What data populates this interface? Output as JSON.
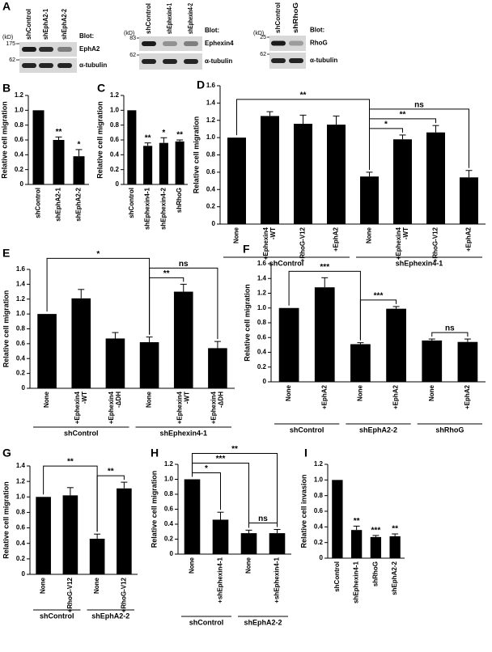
{
  "blot_panel": {
    "panel": "A",
    "blots": [
      {
        "unit": "(kD)",
        "lanes": [
          "shControl",
          "shEphA2-1",
          "shEphA2-2"
        ],
        "rows": [
          {
            "marker": 175,
            "blot_label": "Blot:",
            "antibody": "EphA2"
          },
          {
            "marker": 62,
            "antibody": "α-tubulin"
          }
        ]
      },
      {
        "unit": "(kD)",
        "lanes": [
          "shControl",
          "shEphexin4-1",
          "shEphexin4-2"
        ],
        "rows": [
          {
            "marker": 83,
            "blot_label": "Blot:",
            "antibody": "Ephexin4"
          },
          {
            "marker": 62,
            "antibody": "α-tubulin"
          }
        ]
      },
      {
        "unit": "(kD)",
        "lanes": [
          "shControl",
          "shRhoG"
        ],
        "rows": [
          {
            "marker": 25,
            "blot_label": "Blot:",
            "antibody": "RhoG"
          },
          {
            "marker": 62,
            "antibody": "α-tubulin"
          }
        ]
      }
    ]
  },
  "chart_data": [
    {
      "type": "bar",
      "panel": "B",
      "y_label": "Relative cell migration",
      "color": "#000000",
      "categories": [
        [
          "shControl"
        ],
        [
          "shEphA2-1"
        ],
        [
          "shEphA2-2"
        ]
      ],
      "values": [
        1.0,
        0.6,
        0.38
      ],
      "errors": [
        null,
        0.04,
        0.09
      ],
      "significance": [
        null,
        "**",
        "*"
      ],
      "ylim": [
        0,
        1.2
      ],
      "yticks": [
        0,
        0.2,
        0.4,
        0.6,
        0.8,
        {
          "value": 1,
          "label": "1.0"
        },
        1.2
      ]
    },
    {
      "type": "bar",
      "panel": "C",
      "y_label": "Relative cell migration",
      "color": "#000000",
      "categories": [
        [
          "shControl"
        ],
        [
          "shEphexin4-1"
        ],
        [
          "shEphexin4-2"
        ],
        [
          "shRhoG"
        ]
      ],
      "values": [
        1.0,
        0.52,
        0.56,
        0.58
      ],
      "errors": [
        null,
        0.04,
        0.07,
        0.02
      ],
      "significance": [
        null,
        "**",
        "*",
        "**"
      ],
      "ylim": [
        0,
        1.2
      ],
      "yticks": [
        0,
        0.2,
        0.4,
        0.6,
        0.8,
        {
          "value": 1,
          "label": "1.0"
        },
        1.2
      ]
    },
    {
      "type": "bar",
      "panel": "D",
      "y_label": "Relative cell migration",
      "color": "#000000",
      "categories": [
        [
          "None"
        ],
        [
          "+Ephexin4",
          "-WT"
        ],
        [
          "+RhoG-V12"
        ],
        [
          "+EphA2"
        ],
        [
          "None"
        ],
        [
          "+Ephexin4",
          "-WT"
        ],
        [
          "+RhoG-V12"
        ],
        [
          "+EphA2"
        ]
      ],
      "values": [
        1.0,
        1.25,
        1.16,
        1.15,
        0.55,
        0.98,
        1.06,
        0.54
      ],
      "errors": [
        null,
        0.05,
        0.1,
        0.1,
        0.05,
        0.05,
        0.08,
        0.08
      ],
      "groups": [
        {
          "name": "shControl",
          "start": 0,
          "end": 3
        },
        {
          "name": "shEphexin4-1",
          "start": 4,
          "end": 7
        }
      ],
      "annotations": [
        {
          "text": "**",
          "from": 0,
          "to": 4
        },
        {
          "text": "ns",
          "from": 4,
          "to": 7
        },
        {
          "text": "**",
          "from": 4,
          "to": 6
        },
        {
          "text": "*",
          "from": 4,
          "to": 5
        }
      ],
      "ylim": [
        0,
        1.6
      ],
      "yticks": [
        0,
        0.2,
        0.4,
        0.6,
        0.8,
        {
          "value": 1,
          "label": "1.0"
        },
        1.2,
        1.4,
        1.6
      ]
    },
    {
      "type": "bar",
      "panel": "E",
      "y_label": "Relative cell migration",
      "color": "#000000",
      "categories": [
        [
          "None"
        ],
        [
          "+Ephexin4",
          "-WT"
        ],
        [
          "+Ephexin4",
          "-ΔDH"
        ],
        [
          "None"
        ],
        [
          "+Ephexin4",
          "-WT"
        ],
        [
          "+Ephexin4",
          "-ΔDH"
        ]
      ],
      "values": [
        1.0,
        1.21,
        0.67,
        0.62,
        1.3,
        0.54
      ],
      "errors": [
        null,
        0.12,
        0.08,
        0.07,
        0.1,
        0.09
      ],
      "groups": [
        {
          "name": "shControl",
          "start": 0,
          "end": 2
        },
        {
          "name": "shEphexin4-1",
          "start": 3,
          "end": 5
        }
      ],
      "annotations": [
        {
          "text": "*",
          "from": 0,
          "to": 3
        },
        {
          "text": "ns",
          "from": 3,
          "to": 5
        },
        {
          "text": "**",
          "from": 3,
          "to": 4
        }
      ],
      "ylim": [
        0,
        1.6
      ],
      "yticks": [
        0,
        0.2,
        0.4,
        0.6,
        0.8,
        {
          "value": 1,
          "label": "1.0"
        },
        1.2,
        1.4,
        1.6
      ]
    },
    {
      "type": "bar",
      "panel": "F",
      "y_label": "Relative cell migration",
      "color": "#000000",
      "categories": [
        [
          "None"
        ],
        [
          "+EphA2"
        ],
        [
          "None"
        ],
        [
          "+EphA2"
        ],
        [
          "None"
        ],
        [
          "+EphA2"
        ]
      ],
      "values": [
        1.0,
        1.28,
        0.51,
        0.99,
        0.56,
        0.54
      ],
      "errors": [
        null,
        0.13,
        0.02,
        0.03,
        0.02,
        0.04
      ],
      "groups": [
        {
          "name": "shControl",
          "start": 0,
          "end": 1
        },
        {
          "name": "shEphA2-2",
          "start": 2,
          "end": 3
        },
        {
          "name": "shRhoG",
          "start": 4,
          "end": 5
        }
      ],
      "annotations": [
        {
          "text": "***",
          "from": 0,
          "to": 2
        },
        {
          "text": "***",
          "from": 2,
          "to": 3
        },
        {
          "text": "ns",
          "from": 4,
          "to": 5
        }
      ],
      "ylim": [
        0,
        1.6
      ],
      "yticks": [
        0,
        0.2,
        0.4,
        0.6,
        0.8,
        {
          "value": 1,
          "label": "1.0"
        },
        1.2,
        1.4,
        1.6
      ]
    },
    {
      "type": "bar",
      "panel": "G",
      "y_label": "Relative cell migration",
      "color": "#000000",
      "categories": [
        [
          "None"
        ],
        [
          "+RhoG-V12"
        ],
        [
          "None"
        ],
        [
          "+RhoG-V12"
        ]
      ],
      "values": [
        1.0,
        1.02,
        0.46,
        1.11
      ],
      "errors": [
        null,
        0.1,
        0.06,
        0.08
      ],
      "groups": [
        {
          "name": "shControl",
          "start": 0,
          "end": 1
        },
        {
          "name": "shEphA2-2",
          "start": 2,
          "end": 3
        }
      ],
      "annotations": [
        {
          "text": "**",
          "from": 0,
          "to": 2
        },
        {
          "text": "**",
          "from": 2,
          "to": 3
        }
      ],
      "ylim": [
        0,
        1.4
      ],
      "yticks": [
        0,
        0.2,
        0.4,
        0.6,
        0.8,
        {
          "value": 1,
          "label": "1.0"
        },
        1.2,
        1.4
      ]
    },
    {
      "type": "bar",
      "panel": "H",
      "y_label": "Relative cell migration",
      "color": "#000000",
      "categories": [
        [
          "None"
        ],
        [
          "+shEphexin4-1"
        ],
        [
          "None"
        ],
        [
          "+shEphexin4-1"
        ]
      ],
      "values": [
        1.0,
        0.46,
        0.28,
        0.28
      ],
      "errors": [
        null,
        0.1,
        0.04,
        0.05
      ],
      "groups": [
        {
          "name": "shControl",
          "start": 0,
          "end": 1
        },
        {
          "name": "shEphA2-2",
          "start": 2,
          "end": 3
        }
      ],
      "annotations": [
        {
          "text": "*",
          "from": 0,
          "to": 1
        },
        {
          "text": "***",
          "from": 0,
          "to": 2
        },
        {
          "text": "**",
          "from": 0,
          "to": 3
        },
        {
          "text": "ns",
          "from": 2,
          "to": 3
        }
      ],
      "ylim": [
        0,
        1.2
      ],
      "yticks": [
        0,
        0.2,
        0.4,
        0.6,
        0.8,
        {
          "value": 1,
          "label": "1.0"
        },
        1.2
      ]
    },
    {
      "type": "bar",
      "panel": "I",
      "y_label": "Relative cell invasion",
      "color": "#000000",
      "categories": [
        [
          "shControl"
        ],
        [
          "shEphexin4-1"
        ],
        [
          "shRhoG"
        ],
        [
          "shEphA2-2"
        ]
      ],
      "values": [
        1.0,
        0.36,
        0.27,
        0.28
      ],
      "errors": [
        null,
        0.05,
        0.02,
        0.03
      ],
      "significance": [
        null,
        "**",
        "***",
        "**"
      ],
      "ylim": [
        0,
        1.2
      ],
      "yticks": [
        0,
        0.2,
        0.4,
        0.6,
        0.8,
        {
          "value": 1,
          "label": "1.0"
        },
        1.2
      ]
    }
  ]
}
